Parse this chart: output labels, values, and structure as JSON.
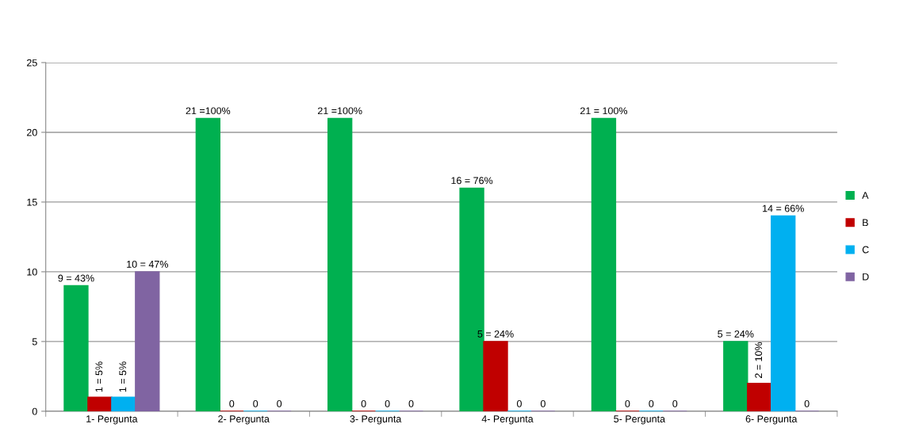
{
  "chart_data": {
    "type": "bar",
    "categories": [
      "1- Pergunta",
      "2- Pergunta",
      "3- Pergunta",
      "4- Pergunta",
      "5- Pergunta",
      "6- Pergunta"
    ],
    "series": [
      {
        "name": "A",
        "color": "#00b050",
        "values": [
          9,
          21,
          21,
          16,
          21,
          5
        ],
        "value_labels": [
          "9 = 43%",
          "21 =100%",
          "21 =100%",
          "16 = 76%",
          "21 = 100%",
          "5 = 24%"
        ]
      },
      {
        "name": "B",
        "color": "#c00000",
        "values": [
          1,
          0,
          0,
          5,
          0,
          2
        ],
        "value_labels": [
          "1 = 5%",
          "0",
          "0",
          "5 = 24%",
          "0",
          "2 = 10%"
        ]
      },
      {
        "name": "C",
        "color": "#00b0f0",
        "values": [
          1,
          0,
          0,
          0,
          0,
          14
        ],
        "value_labels": [
          "1 = 5%",
          "0",
          "0",
          "0",
          "0",
          "14 = 66%"
        ]
      },
      {
        "name": "D",
        "color": "#8064a2",
        "values": [
          10,
          0,
          0,
          0,
          0,
          0
        ],
        "value_labels": [
          "10 = 47%",
          "0",
          "0",
          "0",
          "0",
          "0"
        ]
      }
    ],
    "ylim": [
      0,
      25
    ],
    "yticks": [
      0,
      5,
      10,
      15,
      20,
      25
    ],
    "grid": "y",
    "legend": "right"
  }
}
